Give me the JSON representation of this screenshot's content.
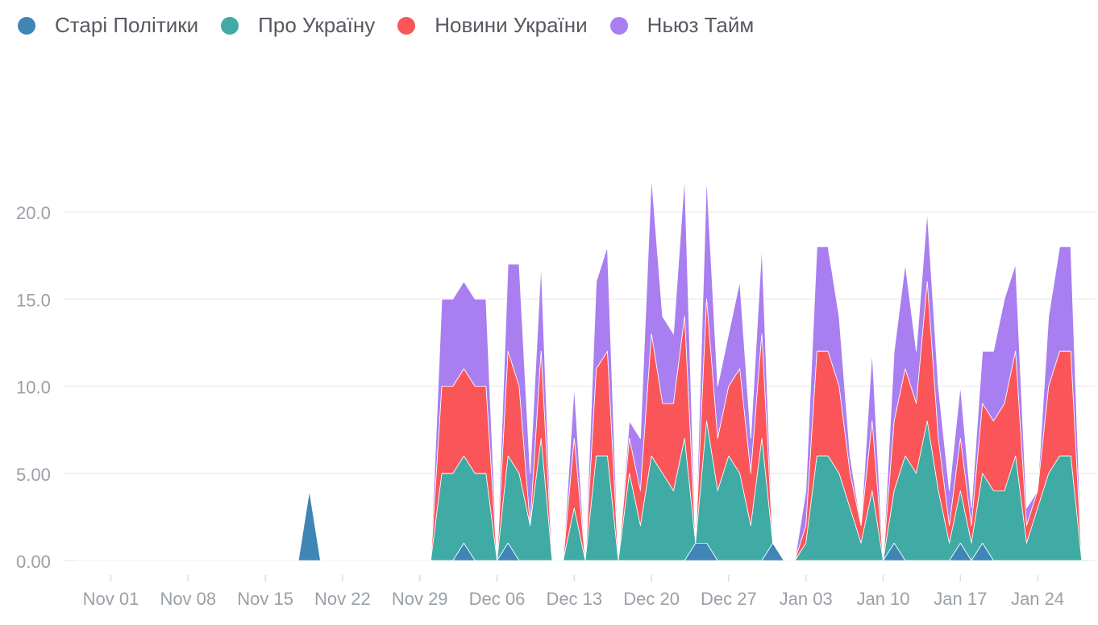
{
  "chart_data": {
    "type": "area",
    "stacked": true,
    "legend_position": "top-left",
    "grid": "horizontal",
    "ylim": [
      0,
      24
    ],
    "y_ticks": [
      0,
      5,
      10,
      15,
      20
    ],
    "y_tick_labels": [
      "0.00",
      "5.00",
      "10.0",
      "15.0",
      "20.0"
    ],
    "x_ticks": [
      "2021-11-01",
      "2021-11-08",
      "2021-11-15",
      "2021-11-22",
      "2021-11-29",
      "2021-12-06",
      "2021-12-13",
      "2021-12-20",
      "2021-12-27",
      "2022-01-03",
      "2022-01-10",
      "2022-01-17",
      "2022-01-24"
    ],
    "x_tick_labels": [
      "Nov 01",
      "Nov 08",
      "Nov 15",
      "Nov 22",
      "Nov 29",
      "Dec 06",
      "Dec 13",
      "Dec 20",
      "Dec 27",
      "Jan 03",
      "Jan 10",
      "Jan 17",
      "Jan 24"
    ],
    "x": [
      "2021-10-29",
      "2021-11-18",
      "2021-11-19",
      "2021-11-20",
      "2021-11-21",
      "2021-11-30",
      "2021-12-01",
      "2021-12-02",
      "2021-12-03",
      "2021-12-04",
      "2021-12-05",
      "2021-12-06",
      "2021-12-07",
      "2021-12-08",
      "2021-12-09",
      "2021-12-10",
      "2021-12-11",
      "2021-12-12",
      "2021-12-13",
      "2021-12-14",
      "2021-12-15",
      "2021-12-16",
      "2021-12-17",
      "2021-12-18",
      "2021-12-19",
      "2021-12-20",
      "2021-12-21",
      "2021-12-22",
      "2021-12-23",
      "2021-12-24",
      "2021-12-25",
      "2021-12-26",
      "2021-12-27",
      "2021-12-28",
      "2021-12-29",
      "2021-12-30",
      "2021-12-31",
      "2022-01-01",
      "2022-01-02",
      "2022-01-03",
      "2022-01-04",
      "2022-01-05",
      "2022-01-06",
      "2022-01-07",
      "2022-01-08",
      "2022-01-09",
      "2022-01-10",
      "2022-01-11",
      "2022-01-12",
      "2022-01-13",
      "2022-01-14",
      "2022-01-15",
      "2022-01-16",
      "2022-01-17",
      "2022-01-18",
      "2022-01-19",
      "2022-01-20",
      "2022-01-21",
      "2022-01-22",
      "2022-01-23",
      "2022-01-24",
      "2022-01-25",
      "2022-01-26",
      "2022-01-27",
      "2022-01-28"
    ],
    "series": [
      {
        "name": "Старі Політики",
        "color": "#3f85b5",
        "values": [
          0,
          0,
          4,
          0,
          0,
          0,
          0,
          0,
          1,
          0,
          0,
          0,
          1,
          0,
          0,
          0,
          0,
          0,
          0,
          0,
          0,
          0,
          0,
          0,
          0,
          0,
          0,
          0,
          0,
          1,
          1,
          0,
          0,
          0,
          0,
          0,
          1,
          0,
          0,
          0,
          0,
          0,
          0,
          0,
          0,
          0,
          0,
          1,
          0,
          0,
          0,
          0,
          0,
          1,
          0,
          1,
          0,
          0,
          0,
          0,
          0,
          0,
          0,
          0,
          0
        ]
      },
      {
        "name": "Про Україну",
        "color": "#40aaa4",
        "values": [
          0,
          0,
          0,
          0,
          0,
          0,
          5,
          5,
          5,
          5,
          5,
          0,
          5,
          5,
          2,
          7,
          0,
          0,
          3,
          0,
          6,
          6,
          0,
          5,
          2,
          6,
          5,
          4,
          7,
          0,
          7,
          4,
          6,
          5,
          2,
          7,
          0,
          0,
          0,
          1,
          6,
          6,
          5,
          3,
          1,
          4,
          0,
          3,
          6,
          5,
          8,
          4,
          1,
          3,
          1,
          4,
          4,
          4,
          6,
          1,
          3,
          5,
          6,
          6,
          0
        ]
      },
      {
        "name": "Новини України",
        "color": "#fa5659",
        "values": [
          0,
          0,
          0,
          0,
          0,
          0,
          5,
          5,
          5,
          5,
          5,
          0,
          6,
          5,
          0,
          5,
          0,
          0,
          4,
          0,
          5,
          6,
          0,
          2,
          2,
          7,
          4,
          5,
          7,
          0,
          7,
          3,
          4,
          6,
          3,
          6,
          0,
          0,
          0,
          1,
          6,
          6,
          5,
          2,
          1,
          4,
          0,
          4,
          5,
          4,
          8,
          3,
          1,
          3,
          1,
          4,
          4,
          5,
          6,
          1,
          1,
          5,
          6,
          6,
          0
        ]
      },
      {
        "name": "Ньюз Тайм",
        "color": "#a97ef0",
        "values": [
          0,
          0,
          0,
          0,
          0,
          0,
          5,
          5,
          5,
          5,
          5,
          0,
          5,
          7,
          3,
          5,
          0,
          0,
          3,
          0,
          5,
          6,
          0,
          1,
          3,
          9,
          5,
          4,
          8,
          0,
          7,
          3,
          3,
          5,
          2,
          5,
          0,
          0,
          0,
          2,
          6,
          6,
          4,
          1,
          0,
          4,
          0,
          4,
          6,
          3,
          4,
          3,
          2,
          3,
          1,
          3,
          4,
          6,
          5,
          1,
          0,
          4,
          6,
          6,
          0
        ]
      }
    ]
  }
}
